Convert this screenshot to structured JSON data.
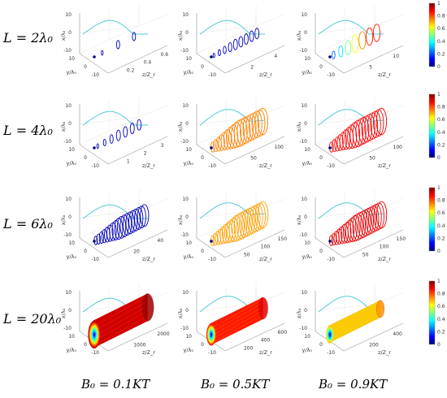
{
  "row_labels": [
    "L = 2λ₀",
    "L = 4λ₀",
    "L = 6λ₀",
    "L = 20λ₀"
  ],
  "col_labels": [
    "B₀ = 0.1KT",
    "B₀ = 0.5KT",
    "B₀ = 0.9KT"
  ],
  "axis_labels": {
    "x": "x/λ₀",
    "y": "y/λ₀",
    "z": "z/Z_r"
  },
  "colors": {
    "trajectory_projection": "#56c8d8",
    "axis": "#9a9a9a"
  },
  "colorbar": {
    "ticks": [
      "1",
      "0.8",
      "0.6",
      "0.4",
      "0.2",
      "0"
    ],
    "colormap": "jet",
    "range": [
      0,
      1
    ]
  },
  "chart_data": {
    "type": "line",
    "description_of_panels": "4x3 grid of 3D electron trajectory plots, color encodes normalized value 0-1",
    "panels": [
      {
        "row": 0,
        "col": 0,
        "z_ticks": [
          "0.2",
          "0.4",
          "0.6"
        ],
        "y_ticks": [
          "10",
          "0",
          "-10"
        ],
        "x_ticks": [
          "10",
          "0",
          "-10"
        ],
        "color_level": 0.05,
        "loops": 3,
        "envelope": 0.15
      },
      {
        "row": 0,
        "col": 1,
        "z_ticks": [
          "2",
          "4"
        ],
        "y_ticks": [
          "10",
          "0",
          "-10"
        ],
        "x_ticks": [
          "10",
          "0",
          "-10"
        ],
        "color_level": 0.05,
        "loops": 9,
        "envelope": 0.25
      },
      {
        "row": 0,
        "col": 2,
        "z_ticks": [
          "5",
          "10"
        ],
        "y_ticks": [
          "10",
          "0",
          "-10"
        ],
        "x_ticks": [
          "10",
          "0",
          "-10"
        ],
        "color_level": 0.8,
        "loops": 7,
        "envelope": 0.55,
        "gradient": true
      },
      {
        "row": 1,
        "col": 0,
        "z_ticks": [
          "1",
          "2",
          "3"
        ],
        "y_ticks": [
          "10",
          "0",
          "-10"
        ],
        "x_ticks": [
          "10",
          "0",
          "-10"
        ],
        "color_level": 0.05,
        "loops": 7,
        "envelope": 0.25
      },
      {
        "row": 1,
        "col": 1,
        "z_ticks": [
          "50",
          "100"
        ],
        "y_ticks": [
          "10",
          "0",
          "-10"
        ],
        "x_ticks": [
          "10",
          "0",
          "-10"
        ],
        "color_level": 0.75,
        "loops": 18,
        "envelope": 0.95
      },
      {
        "row": 1,
        "col": 2,
        "z_ticks": [
          "50",
          "100"
        ],
        "y_ticks": [
          "10",
          "0",
          "-10"
        ],
        "x_ticks": [
          "10",
          "0",
          "-10"
        ],
        "color_level": 0.88,
        "loops": 18,
        "envelope": 0.95
      },
      {
        "row": 2,
        "col": 0,
        "z_ticks": [
          "20",
          "40"
        ],
        "y_ticks": [
          "10",
          "0",
          "-10"
        ],
        "x_ticks": [
          "10",
          "0",
          "-10"
        ],
        "color_level": 0.05,
        "loops": 18,
        "envelope": 0.75
      },
      {
        "row": 2,
        "col": 1,
        "z_ticks": [
          "50",
          "100",
          "150"
        ],
        "y_ticks": [
          "10",
          "0",
          "-10"
        ],
        "x_ticks": [
          "10",
          "0",
          "-10"
        ],
        "color_level": 0.72,
        "loops": 20,
        "envelope": 0.95
      },
      {
        "row": 2,
        "col": 2,
        "z_ticks": [
          "50",
          "100",
          "150"
        ],
        "y_ticks": [
          "10",
          "0",
          "-10"
        ],
        "x_ticks": [
          "10",
          "0",
          "-10"
        ],
        "color_level": 0.9,
        "loops": 20,
        "envelope": 0.95
      },
      {
        "row": 3,
        "col": 0,
        "z_ticks": [
          "1000",
          "2000"
        ],
        "y_ticks": [
          "10",
          "0",
          "-10"
        ],
        "x_ticks": [
          "10",
          "0",
          "-10"
        ],
        "color_level": 0.92,
        "loops": 0,
        "envelope": 1.0,
        "solid": true
      },
      {
        "row": 3,
        "col": 1,
        "z_ticks": [
          "200",
          "400",
          "600"
        ],
        "y_ticks": [
          "10",
          "0",
          "-10"
        ],
        "x_ticks": [
          "10",
          "0",
          "-10"
        ],
        "color_level": 0.85,
        "loops": 0,
        "envelope": 0.75,
        "solid": true
      },
      {
        "row": 3,
        "col": 2,
        "z_ticks": [
          "200",
          "400"
        ],
        "y_ticks": [
          "10",
          "0",
          "-10"
        ],
        "x_ticks": [
          "10",
          "0",
          "-10"
        ],
        "color_level": 0.68,
        "loops": 0,
        "envelope": 0.55,
        "solid": true
      }
    ]
  }
}
